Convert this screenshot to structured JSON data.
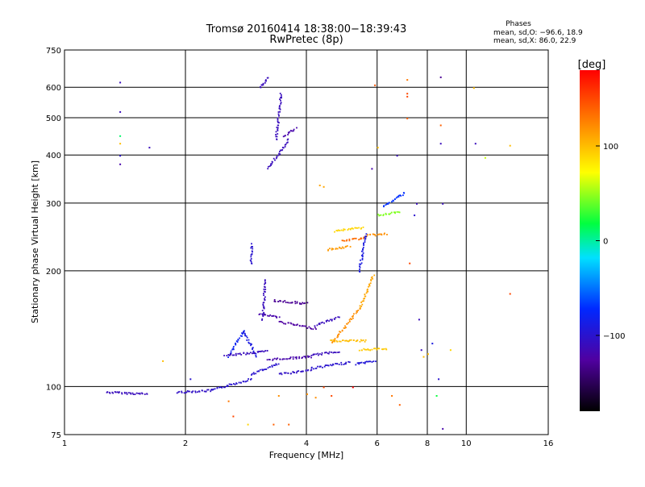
{
  "chart_data": {
    "type": "scatter",
    "title": "Tromsø 20160414 18:38:00−18:39:43",
    "subtitle": "RwPretec (8p)",
    "xlabel": "Frequency [MHz]",
    "ylabel": "Stationary phase Virtual Height [km]",
    "x_scale": "log2",
    "y_scale": "log",
    "xlim": [
      1,
      16
    ],
    "ylim": [
      75,
      750
    ],
    "x_ticks": [
      1,
      2,
      4,
      6,
      8,
      10,
      16
    ],
    "x_tick_labels": [
      "1",
      "2",
      "4",
      "6",
      "8",
      "10",
      "16"
    ],
    "x_grid": [
      2,
      4,
      6,
      8,
      10
    ],
    "y_ticks": [
      75,
      100,
      200,
      300,
      400,
      500,
      600,
      750
    ],
    "y_tick_labels": [
      "75",
      "100",
      "200",
      "300",
      "400",
      "500",
      "600",
      "750"
    ],
    "y_grid": [
      100,
      200,
      300,
      400,
      500,
      600
    ],
    "grid": true,
    "phases_box": {
      "title": "Phases",
      "line1": "mean, sd,O: −96.6, 18.9",
      "line2": "mean, sd,X: 86.0, 22.9"
    },
    "colorbar": {
      "label": "[deg]",
      "range": [
        -180,
        180
      ],
      "ticks": [
        100,
        0,
        -100
      ],
      "tick_labels": [
        "100",
        "0",
        "−100"
      ],
      "colormap": "rainbow"
    },
    "traces": [
      {
        "f0": 1.27,
        "f1": 1.6,
        "h0": 97,
        "h1": 96,
        "phase": -110
      },
      {
        "f0": 1.9,
        "f1": 2.3,
        "h0": 97,
        "h1": 98,
        "phase": -105
      },
      {
        "f0": 2.3,
        "f1": 2.9,
        "h0": 98,
        "h1": 105,
        "phase": -100
      },
      {
        "f0": 2.9,
        "f1": 3.4,
        "h0": 108,
        "h1": 115,
        "phase": -100
      },
      {
        "f0": 3.4,
        "f1": 4.1,
        "h0": 108,
        "h1": 111,
        "phase": -105
      },
      {
        "f0": 4.1,
        "f1": 5.1,
        "h0": 112,
        "h1": 116,
        "phase": -100
      },
      {
        "f0": 5.3,
        "f1": 5.9,
        "h0": 115,
        "h1": 117,
        "phase": -95
      },
      {
        "f0": 2.55,
        "f1": 2.78,
        "h0": 120,
        "h1": 140,
        "phase": -80
      },
      {
        "f0": 2.78,
        "f1": 3.0,
        "h0": 140,
        "h1": 120,
        "phase": -90
      },
      {
        "f0": 2.5,
        "f1": 3.2,
        "h0": 121,
        "h1": 124,
        "phase": -110
      },
      {
        "f0": 3.2,
        "f1": 4.1,
        "h0": 118,
        "h1": 120,
        "phase": -120
      },
      {
        "f0": 4.1,
        "f1": 4.8,
        "h0": 121,
        "h1": 124,
        "phase": -110
      },
      {
        "f0": 3.05,
        "f1": 3.4,
        "h0": 155,
        "h1": 152,
        "phase": -120
      },
      {
        "f0": 3.4,
        "f1": 4.2,
        "h0": 148,
        "h1": 142,
        "phase": -125
      },
      {
        "f0": 4.2,
        "f1": 4.8,
        "h0": 145,
        "h1": 152,
        "phase": -110
      },
      {
        "f0": 3.3,
        "f1": 4.0,
        "h0": 168,
        "h1": 165,
        "phase": -130
      },
      {
        "f0": 4.6,
        "f1": 5.4,
        "h0": 130,
        "h1": 160,
        "phase": 120
      },
      {
        "f0": 5.4,
        "f1": 5.85,
        "h0": 160,
        "h1": 195,
        "phase": 110
      },
      {
        "f0": 4.6,
        "f1": 5.6,
        "h0": 132,
        "h1": 132,
        "phase": 100
      },
      {
        "f0": 5.4,
        "f1": 6.3,
        "h0": 125,
        "h1": 126,
        "phase": 95
      },
      {
        "f0": 4.5,
        "f1": 5.1,
        "h0": 228,
        "h1": 232,
        "phase": 115
      },
      {
        "f0": 4.9,
        "f1": 5.6,
        "h0": 240,
        "h1": 245,
        "phase": 135
      },
      {
        "f0": 5.6,
        "f1": 6.3,
        "h0": 248,
        "h1": 250,
        "phase": 120
      },
      {
        "f0": 5.4,
        "f1": 5.6,
        "h0": 200,
        "h1": 250,
        "phase": -90
      },
      {
        "f0": 4.7,
        "f1": 5.5,
        "h0": 255,
        "h1": 260,
        "phase": 90
      },
      {
        "f0": 6.2,
        "f1": 7.0,
        "h0": 295,
        "h1": 320,
        "phase": -70
      },
      {
        "f0": 6.0,
        "f1": 6.8,
        "h0": 280,
        "h1": 285,
        "phase": 45
      },
      {
        "f0": 3.2,
        "f1": 3.6,
        "h0": 370,
        "h1": 440,
        "phase": -110
      },
      {
        "f0": 3.35,
        "f1": 3.45,
        "h0": 440,
        "h1": 580,
        "phase": -110
      },
      {
        "f0": 3.05,
        "f1": 3.2,
        "h0": 600,
        "h1": 640,
        "phase": -110
      },
      {
        "f0": 3.5,
        "f1": 3.75,
        "h0": 450,
        "h1": 470,
        "phase": -120
      },
      {
        "f0": 2.9,
        "f1": 2.92,
        "h0": 210,
        "h1": 235,
        "phase": -100
      },
      {
        "f0": 3.1,
        "f1": 3.15,
        "h0": 150,
        "h1": 190,
        "phase": -110
      }
    ],
    "scatter_points": [
      {
        "f": 1.37,
        "h": 620,
        "phase": -110
      },
      {
        "f": 1.37,
        "h": 520,
        "phase": -110
      },
      {
        "f": 1.37,
        "h": 450,
        "phase": 10
      },
      {
        "f": 1.37,
        "h": 430,
        "phase": 100
      },
      {
        "f": 1.37,
        "h": 400,
        "phase": -100
      },
      {
        "f": 1.37,
        "h": 380,
        "phase": -120
      },
      {
        "f": 1.62,
        "h": 420,
        "phase": -110
      },
      {
        "f": 1.75,
        "h": 117,
        "phase": 100
      },
      {
        "f": 2.05,
        "h": 105,
        "phase": -100
      },
      {
        "f": 2.55,
        "h": 92,
        "phase": 130
      },
      {
        "f": 2.62,
        "h": 84,
        "phase": 150
      },
      {
        "f": 2.85,
        "h": 80,
        "phase": 90
      },
      {
        "f": 3.3,
        "h": 80,
        "phase": 140
      },
      {
        "f": 3.4,
        "h": 95,
        "phase": 120
      },
      {
        "f": 3.6,
        "h": 80,
        "phase": 140
      },
      {
        "f": 4.0,
        "h": 96,
        "phase": 120
      },
      {
        "f": 4.2,
        "h": 94,
        "phase": 120
      },
      {
        "f": 4.4,
        "h": 100,
        "phase": 150
      },
      {
        "f": 4.6,
        "h": 95,
        "phase": 150
      },
      {
        "f": 5.2,
        "h": 100,
        "phase": 180
      },
      {
        "f": 5.9,
        "h": 610,
        "phase": 145
      },
      {
        "f": 5.8,
        "h": 370,
        "phase": -120
      },
      {
        "f": 4.3,
        "h": 335,
        "phase": 110
      },
      {
        "f": 4.4,
        "h": 332,
        "phase": 110
      },
      {
        "f": 6.0,
        "h": 420,
        "phase": 100
      },
      {
        "f": 6.7,
        "h": 400,
        "phase": -110
      },
      {
        "f": 7.1,
        "h": 630,
        "phase": 130
      },
      {
        "f": 7.1,
        "h": 580,
        "phase": 150
      },
      {
        "f": 7.1,
        "h": 570,
        "phase": 150
      },
      {
        "f": 7.1,
        "h": 500,
        "phase": 140
      },
      {
        "f": 7.2,
        "h": 210,
        "phase": 150
      },
      {
        "f": 7.4,
        "h": 280,
        "phase": -100
      },
      {
        "f": 7.5,
        "h": 300,
        "phase": -110
      },
      {
        "f": 7.6,
        "h": 150,
        "phase": -110
      },
      {
        "f": 7.7,
        "h": 125,
        "phase": -110
      },
      {
        "f": 7.8,
        "h": 120,
        "phase": 100
      },
      {
        "f": 8.0,
        "h": 122,
        "phase": 100
      },
      {
        "f": 8.2,
        "h": 130,
        "phase": -90
      },
      {
        "f": 8.4,
        "h": 95,
        "phase": 20
      },
      {
        "f": 8.5,
        "h": 105,
        "phase": -100
      },
      {
        "f": 8.6,
        "h": 640,
        "phase": -130
      },
      {
        "f": 8.6,
        "h": 480,
        "phase": 140
      },
      {
        "f": 8.6,
        "h": 430,
        "phase": -110
      },
      {
        "f": 8.7,
        "h": 300,
        "phase": -110
      },
      {
        "f": 8.7,
        "h": 78,
        "phase": -120
      },
      {
        "f": 9.1,
        "h": 125,
        "phase": 90
      },
      {
        "f": 10.4,
        "h": 600,
        "phase": 100
      },
      {
        "f": 10.5,
        "h": 430,
        "phase": -110
      },
      {
        "f": 11.1,
        "h": 395,
        "phase": 60
      },
      {
        "f": 12.8,
        "h": 425,
        "phase": 100
      },
      {
        "f": 12.8,
        "h": 175,
        "phase": 150
      },
      {
        "f": 6.5,
        "h": 95,
        "phase": 130
      },
      {
        "f": 6.8,
        "h": 90,
        "phase": 140
      }
    ]
  }
}
